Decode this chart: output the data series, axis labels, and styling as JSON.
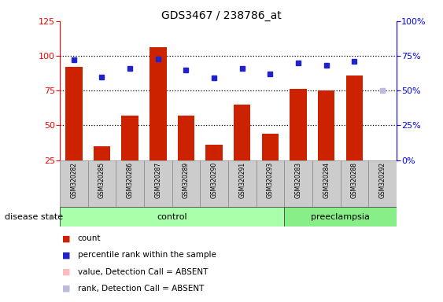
{
  "title": "GDS3467 / 238786_at",
  "samples": [
    "GSM320282",
    "GSM320285",
    "GSM320286",
    "GSM320287",
    "GSM320289",
    "GSM320290",
    "GSM320291",
    "GSM320293",
    "GSM320283",
    "GSM320284",
    "GSM320288",
    "GSM320292"
  ],
  "counts": [
    92,
    35,
    57,
    106,
    57,
    36,
    65,
    44,
    76,
    75,
    86,
    null
  ],
  "percentile_ranks": [
    72,
    60,
    66,
    73,
    65,
    59,
    66,
    62,
    70,
    68,
    71,
    null
  ],
  "absent_value": 25,
  "absent_rank": 50,
  "absent_index": 11,
  "control_count": 8,
  "preeclampsia_count": 4,
  "bar_color": "#cc2200",
  "rank_color": "#2222cc",
  "absent_bar_color": "#ffbbbb",
  "absent_rank_color": "#bbbbdd",
  "ylim_left": [
    25,
    125
  ],
  "ylim_right": [
    0,
    100
  ],
  "yticks_left": [
    25,
    50,
    75,
    100,
    125
  ],
  "yticks_right": [
    0,
    25,
    50,
    75,
    100
  ],
  "ytick_labels_right": [
    "0%",
    "25%",
    "50%",
    "75%",
    "100%"
  ],
  "disease_state_label": "disease state",
  "group_labels": [
    "control",
    "preeclampsia"
  ],
  "control_color": "#aaffaa",
  "preeclampsia_color": "#88ee88",
  "legend_items": [
    {
      "label": "count",
      "color": "#cc2200"
    },
    {
      "label": "percentile rank within the sample",
      "color": "#2222cc"
    },
    {
      "label": "value, Detection Call = ABSENT",
      "color": "#ffbbbb"
    },
    {
      "label": "rank, Detection Call = ABSENT",
      "color": "#bbbbdd"
    }
  ]
}
